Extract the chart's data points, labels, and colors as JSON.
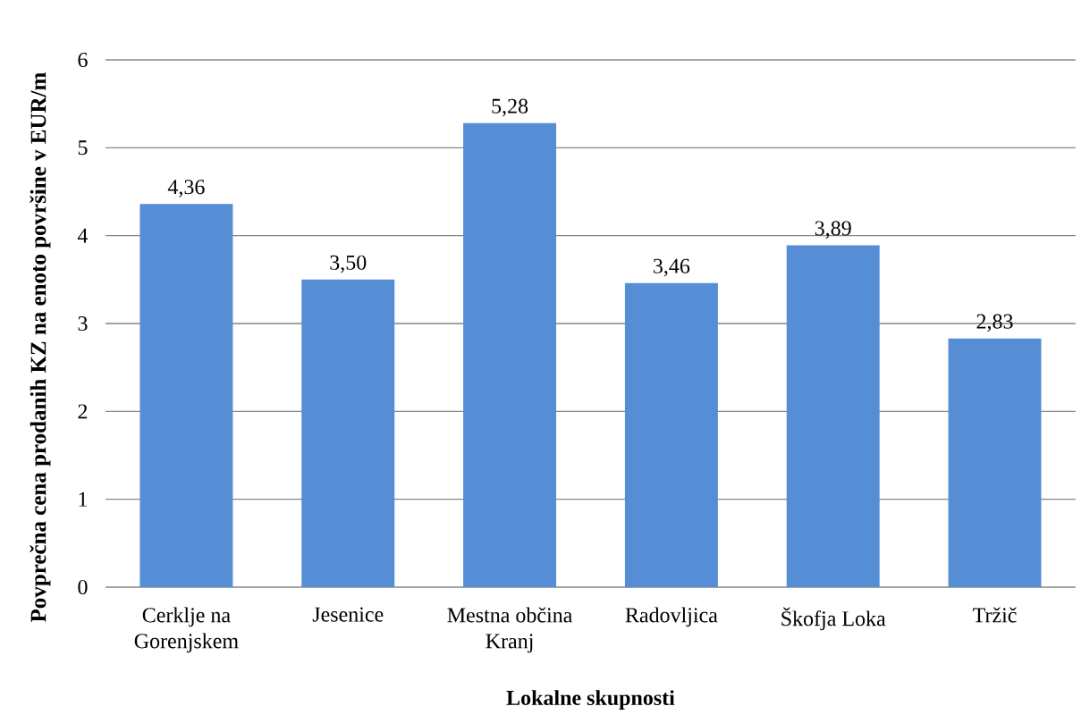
{
  "chart_data": {
    "type": "bar",
    "xlabel": "Lokalne skupnosti",
    "ylabel": "Povprečna cena prodanih KZ na enoto površine v EUR/m",
    "categories": [
      "Cerklje na Gorenjskem",
      "Jesenice",
      "Mestna občina Kranj",
      "Radovljica",
      "Škofja Loka",
      "Tržič"
    ],
    "values": [
      4.36,
      3.5,
      5.28,
      3.46,
      3.89,
      2.83
    ],
    "value_labels": [
      "4,36",
      "3,50",
      "5,28",
      "3,46",
      "3,89",
      "2,83"
    ],
    "color": "#558ed5",
    "ylim": [
      0,
      6
    ],
    "yticks": [
      0,
      1,
      2,
      3,
      4,
      5,
      6
    ],
    "grid": "y"
  }
}
